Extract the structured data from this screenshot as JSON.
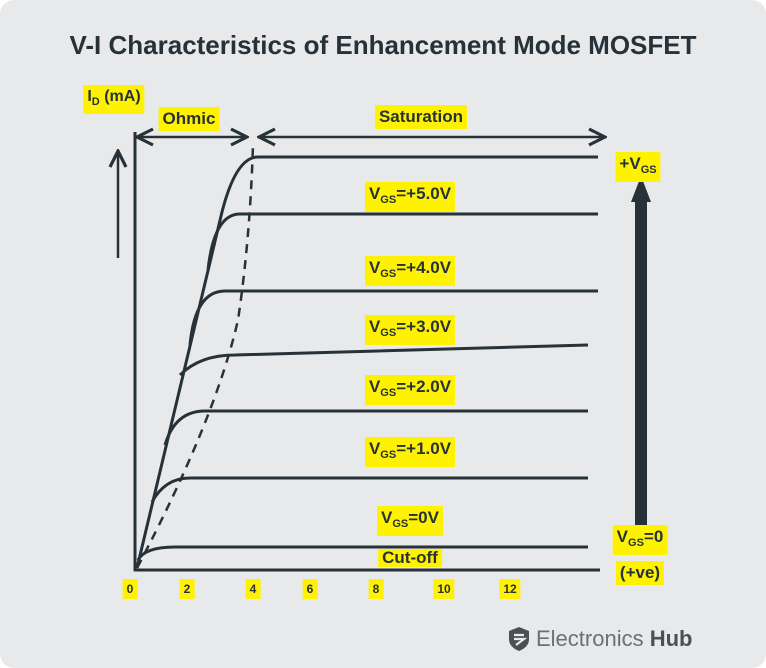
{
  "title": "V-I Characteristics of Enhancement Mode MOSFET",
  "y_axis_label": {
    "main": "I",
    "sub": "D",
    "unit": " (mA)"
  },
  "regions": {
    "ohmic": "Ohmic",
    "saturation": "Saturation",
    "cutoff": "Cut-off"
  },
  "x_ticks": [
    "0",
    "2",
    "4",
    "6",
    "8",
    "10",
    "12"
  ],
  "curves": [
    {
      "pre": "V",
      "sub": "GS",
      "post": "=+5.0V"
    },
    {
      "pre": "V",
      "sub": "GS",
      "post": "=+4.0V"
    },
    {
      "pre": "V",
      "sub": "GS",
      "post": "=+3.0V"
    },
    {
      "pre": "V",
      "sub": "GS",
      "post": "=+2.0V"
    },
    {
      "pre": "V",
      "sub": "GS",
      "post": "=+1.0V"
    },
    {
      "pre": "V",
      "sub": "GS",
      "post": "=0V"
    }
  ],
  "arrow_labels": {
    "top": {
      "pre": "+V",
      "sub": "GS"
    },
    "bottom": {
      "pre": "V",
      "sub": "GS",
      "post": "=0"
    },
    "polarity": "(+ve)"
  },
  "logo": {
    "name": "Electronics",
    "bold": "Hub"
  },
  "colors": {
    "line": "#263238",
    "highlight": "#fff200",
    "background": "#e8e9eb"
  }
}
